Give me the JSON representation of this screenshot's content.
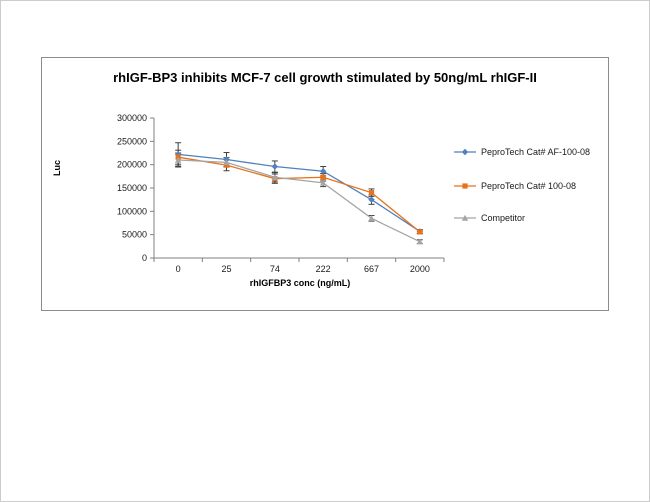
{
  "page": {
    "background": "#ffffff"
  },
  "chart": {
    "title": "rhIGF-BP3 inhibits MCF-7 cell growth stimulated by 50ng/mL rhIGF-II",
    "xlabel": "rhIGFBP3 conc (ng/mL)",
    "ylabel": "Luc"
  },
  "chart_data": {
    "type": "line",
    "title": "rhIGF-BP3 inhibits MCF-7 cell growth stimulated by 50ng/mL rhIGF-II",
    "xlabel": "rhIGFBP3 conc (ng/mL)",
    "ylabel": "Luc",
    "categories": [
      "0",
      "25",
      "74",
      "222",
      "667",
      "2000"
    ],
    "ylim": [
      0,
      300000
    ],
    "yticks": [
      0,
      50000,
      100000,
      150000,
      200000,
      250000,
      300000
    ],
    "grid": false,
    "legend_position": "right",
    "axis_color": "#808080",
    "error_bar_color": "#404040",
    "series": [
      {
        "name": "PeproTech Cat# AF-100-08",
        "color": "#4f81bd",
        "marker": "diamond",
        "values": [
          222000,
          211000,
          196000,
          186000,
          125000,
          57000
        ],
        "errors": [
          25000,
          15000,
          12000,
          10000,
          10000,
          4000
        ]
      },
      {
        "name": "PeproTech Cat# 100-08",
        "color": "#e8711a",
        "marker": "square",
        "values": [
          216000,
          199000,
          170000,
          173000,
          140000,
          56000
        ],
        "errors": [
          15000,
          12000,
          10000,
          8000,
          8000,
          4000
        ]
      },
      {
        "name": "Competitor",
        "color": "#a5a5a5",
        "marker": "triangle",
        "values": [
          210000,
          205000,
          173000,
          161000,
          85000,
          35000
        ],
        "errors": [
          15000,
          10000,
          10000,
          8000,
          6000,
          4000
        ]
      }
    ]
  }
}
